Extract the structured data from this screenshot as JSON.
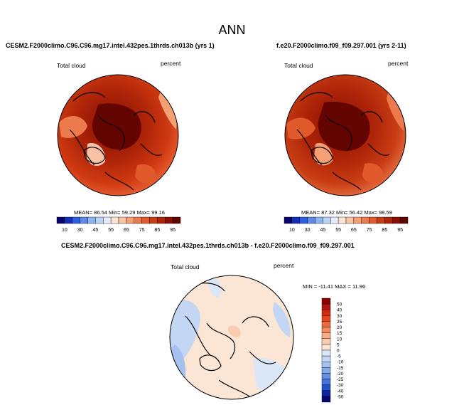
{
  "header": {
    "title": "ANN"
  },
  "chart_data": [
    {
      "type": "heatmap",
      "projection": "polar-stereographic (north pole)",
      "title": "CESM2.F2000climo.C96.C96.mg17.intel.432pes.1thrds.ch013b (yrs 1)",
      "left_label": "Total cloud",
      "right_label": "percent",
      "stats": {
        "mean_label": "MEAN=",
        "mean": "86.54",
        "min_label": "Min=",
        "min": "59.29",
        "max_label": "Max=",
        "max": "99.16"
      },
      "colorbar": {
        "levels": [
          "10",
          "30",
          "45",
          "55",
          "65",
          "75",
          "85",
          "95"
        ],
        "colors": [
          "#08066e",
          "#1330b8",
          "#2d5fe0",
          "#5b8ae8",
          "#8db4f0",
          "#bad3f5",
          "#e3ecf8",
          "#fbe3d2",
          "#f8c3a4",
          "#f59f75",
          "#ec7a4c",
          "#e05a2c",
          "#c93d14",
          "#ad2408",
          "#8b1004",
          "#650501"
        ]
      }
    },
    {
      "type": "heatmap",
      "projection": "polar-stereographic (north pole)",
      "title": "f.e20.F2000climo.f09_f09.297.001 (yrs 2-11)",
      "left_label": "Total cloud",
      "right_label": "percent",
      "stats": {
        "mean_label": "MEAN=",
        "mean": "87.32",
        "min_label": "Min=",
        "min": "56.42",
        "max_label": "Max=",
        "max": "98.59"
      },
      "colorbar": {
        "levels": [
          "10",
          "30",
          "45",
          "55",
          "65",
          "75",
          "85",
          "95"
        ],
        "colors": [
          "#08066e",
          "#1330b8",
          "#2d5fe0",
          "#5b8ae8",
          "#8db4f0",
          "#bad3f5",
          "#e3ecf8",
          "#fbe3d2",
          "#f8c3a4",
          "#f59f75",
          "#ec7a4c",
          "#e05a2c",
          "#c93d14",
          "#ad2408",
          "#8b1004",
          "#650501"
        ]
      }
    },
    {
      "type": "heatmap",
      "projection": "polar-stereographic (north pole)",
      "title": "CESM2.F2000climo.C96.C96.mg17.intel.432pes.1thrds.ch013b - f.e20.F2000climo.f09_f09.297.001",
      "left_label": "Total cloud",
      "right_label": "percent",
      "stats": {
        "min_label": "MIN =",
        "min": "-11.41",
        "max_label": "MAX =",
        "max": "11.96"
      },
      "colorbar": {
        "orientation": "vertical",
        "levels": [
          "50",
          "40",
          "30",
          "25",
          "20",
          "15",
          "10",
          "5",
          "0",
          "-5",
          "-10",
          "-15",
          "-20",
          "-25",
          "-30",
          "-40",
          "-50"
        ],
        "colors": [
          "#8b0000",
          "#b51212",
          "#d12a0c",
          "#e4461a",
          "#ee6a3c",
          "#f28a5e",
          "#f6ac86",
          "#f9cbb0",
          "#fbe5d5",
          "#dbe7f7",
          "#c3d6f4",
          "#a5c1ee",
          "#85a9e8",
          "#6490e2",
          "#4674dc",
          "#2550c8",
          "#0d24a0",
          "#060a6e"
        ]
      }
    }
  ]
}
